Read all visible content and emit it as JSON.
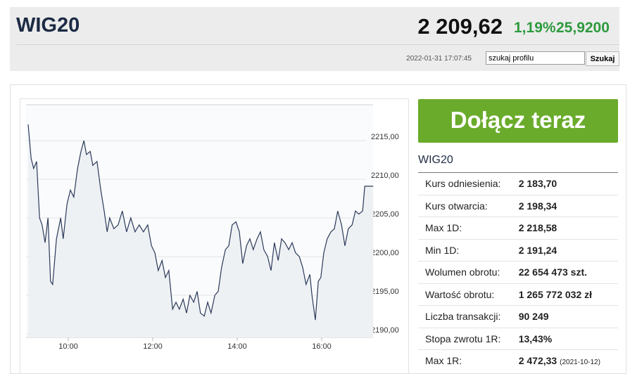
{
  "header": {
    "title": "WIG20",
    "value": "2 209,62",
    "change_pct": "1,19%",
    "change": "25,9200",
    "timestamp": "2022-01-31 17:07:45",
    "search": "szukaj profilu",
    "search_button": "Szukaj"
  },
  "cta": "Dołącz teraz",
  "stats": {
    "title": "WIG20",
    "rows": [
      [
        "Kurs odniesienia:",
        "2 183,70"
      ],
      [
        "Kurs otwarcia:",
        "2 198,34"
      ],
      [
        "Max 1D:",
        "2 218,58"
      ],
      [
        "Min 1D:",
        "2 191,24"
      ],
      [
        "Wolumen obrotu:",
        "22 654 473 szt."
      ],
      [
        "Wartość obrotu:",
        "1 265 772 032 zł"
      ],
      [
        "Liczba transakcji:",
        "90 249"
      ],
      [
        "Stopa zwrotu 1R:",
        "13,43%"
      ],
      [
        "Max 1R:",
        "2 472,33",
        "(2021-10-12)"
      ]
    ]
  },
  "chart_data": {
    "type": "line",
    "x": [
      9.05,
      9.12,
      9.18,
      9.25,
      9.32,
      9.38,
      9.45,
      9.52,
      9.58,
      9.63,
      9.72,
      9.82,
      9.88,
      9.97,
      10.05,
      10.13,
      10.22,
      10.3,
      10.37,
      10.43,
      10.52,
      10.58,
      10.68,
      10.77,
      10.85,
      10.92,
      10.98,
      11.08,
      11.18,
      11.28,
      11.38,
      11.48,
      11.58,
      11.68,
      11.78,
      11.88,
      11.97,
      12.05,
      12.13,
      12.22,
      12.3,
      12.38,
      12.47,
      12.55,
      12.63,
      12.72,
      12.8,
      12.88,
      12.97,
      13.05,
      13.13,
      13.22,
      13.3,
      13.38,
      13.47,
      13.55,
      13.63,
      13.72,
      13.8,
      13.88,
      13.97,
      14.05,
      14.13,
      14.22,
      14.3,
      14.38,
      14.47,
      14.55,
      14.63,
      14.72,
      14.8,
      14.88,
      14.97,
      15.05,
      15.13,
      15.22,
      15.3,
      15.38,
      15.47,
      15.55,
      15.63,
      15.72,
      15.77,
      15.85,
      15.92,
      15.98,
      16.05,
      16.13,
      16.22,
      16.3,
      16.38,
      16.47,
      16.55,
      16.63,
      16.72,
      16.8,
      16.88,
      16.97,
      17.02,
      17.22
    ],
    "series": [
      {
        "color": "#2b3a5a",
        "values": [
          2217.1,
          2212.7,
          2211.4,
          2212.3,
          2205,
          2204.1,
          2201.8,
          2205,
          2196.8,
          2196.4,
          2202.3,
          2205,
          2202.3,
          2206.8,
          2208.6,
          2207.7,
          2211.4,
          2213.6,
          2215,
          2213.2,
          2213.6,
          2211.8,
          2212.3,
          2208.6,
          2205.9,
          2203.2,
          2205,
          2203.6,
          2204.1,
          2205.9,
          2203.2,
          2205,
          2203.2,
          2204.1,
          2203.2,
          2204.1,
          2201.4,
          2200.5,
          2198.2,
          2199.5,
          2197.3,
          2198.2,
          2193.2,
          2194.1,
          2193.2,
          2194.5,
          2192.7,
          2195,
          2194.1,
          2195.5,
          2192.7,
          2192.3,
          2194.1,
          2192.7,
          2195,
          2195.5,
          2198.6,
          2200.9,
          2201.4,
          2204.1,
          2204.5,
          2203.2,
          2199.1,
          2201.4,
          2202.3,
          2200.9,
          2202.3,
          2203.2,
          2200.9,
          2200,
          2198.2,
          2201.8,
          2199.5,
          2202.3,
          2201.8,
          2200.9,
          2201.8,
          2200.5,
          2200,
          2198.6,
          2196.4,
          2197.7,
          2195,
          2191.8,
          2196.8,
          2197.3,
          2200.5,
          2202.3,
          2203.2,
          2203.6,
          2205.9,
          2204.1,
          2201.4,
          2203.6,
          2204.1,
          2205.9,
          2205.5,
          2205.9,
          2209.1,
          2209.1
        ]
      }
    ],
    "xlim": [
      9,
      17.25
    ],
    "xticks": [
      {
        "value": 10,
        "label": "10:00"
      },
      {
        "value": 12,
        "label": "12:00"
      },
      {
        "value": 14,
        "label": "14:00"
      },
      {
        "value": 16,
        "label": "16:00"
      }
    ],
    "ylim": [
      2189.5,
      2220
    ],
    "yticks": [
      {
        "value": 2190,
        "label": "2190,00"
      },
      {
        "value": 2195,
        "label": "2195,00"
      },
      {
        "value": 2200,
        "label": "2200,00"
      },
      {
        "value": 2205,
        "label": "2205,00"
      },
      {
        "value": 2210,
        "label": "2210,00"
      },
      {
        "value": 2215,
        "label": "2215,00"
      }
    ],
    "grid": true
  }
}
